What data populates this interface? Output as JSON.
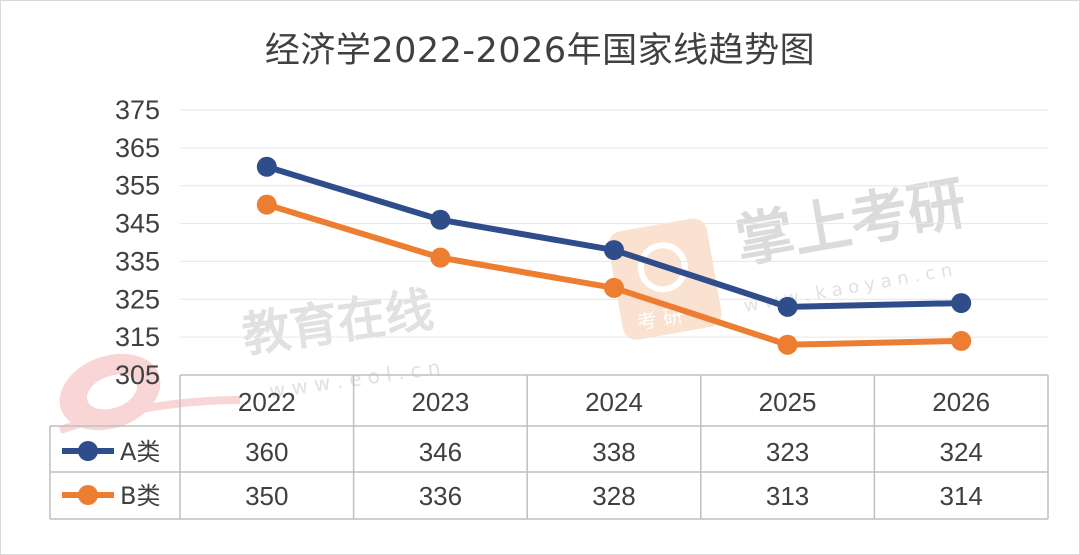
{
  "chart_data": {
    "type": "line",
    "title": "经济学2022-2026年国家线趋势图",
    "categories": [
      "2022",
      "2023",
      "2024",
      "2025",
      "2026"
    ],
    "series": [
      {
        "name": "A类",
        "values": [
          360,
          346,
          338,
          323,
          324
        ],
        "color": "#2f4d8a"
      },
      {
        "name": "B类",
        "values": [
          350,
          336,
          328,
          313,
          314
        ],
        "color": "#ed7d31"
      }
    ],
    "ylim": [
      305,
      375
    ],
    "yticks": [
      375,
      365,
      355,
      345,
      335,
      325,
      315,
      305
    ],
    "grid": true,
    "data_table": true
  },
  "watermarks": {
    "eol_text": "教育在线",
    "eol_url": "w w w . e o l . c n",
    "kaoyan_text": "掌上考研",
    "kaoyan_url": "w w w . k a o y a n . c n",
    "badge_text": "考 研"
  }
}
